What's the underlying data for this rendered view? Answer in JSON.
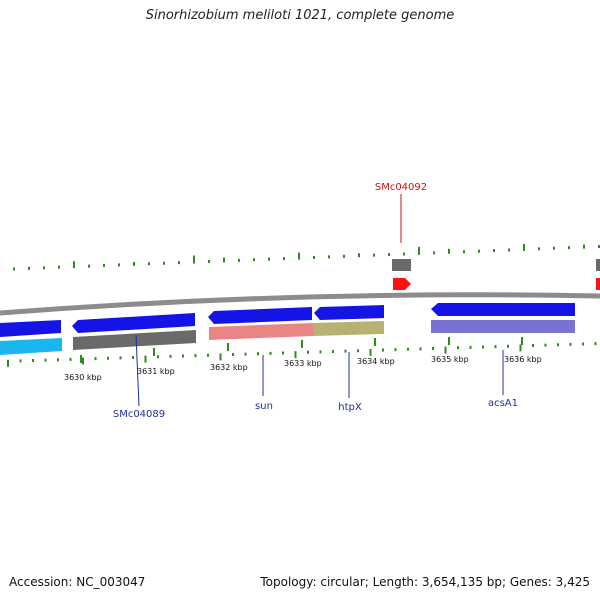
{
  "title": "Sinorhizobium meliloti 1021, complete genome",
  "footer": {
    "accession": "Accession: NC_003047",
    "info": "Topology: circular; Length: 3,654,135 bp; Genes: 3,425"
  },
  "colors": {
    "backbone": "#8c8c8c",
    "gc_ticks": "#2e8b1e",
    "forward_gene": "#1414e6",
    "gene_label": "#1f2f9e",
    "highlight_label": "#cc1111"
  },
  "kbp_labels": [
    "3630 kbp",
    "3631 kbp",
    "3632 kbp",
    "3633 kbp",
    "3634 kbp",
    "3635 kbp",
    "3636 kbp"
  ],
  "gene_labels": [
    {
      "text": "SMc04092",
      "color": "#cc1111"
    },
    {
      "text": "SMc04089",
      "color": "#1f2f9e"
    },
    {
      "text": "sun",
      "color": "#1f2f9e"
    },
    {
      "text": "htpX",
      "color": "#1f2f9e"
    },
    {
      "text": "acsA1",
      "color": "#1f2f9e"
    }
  ]
}
